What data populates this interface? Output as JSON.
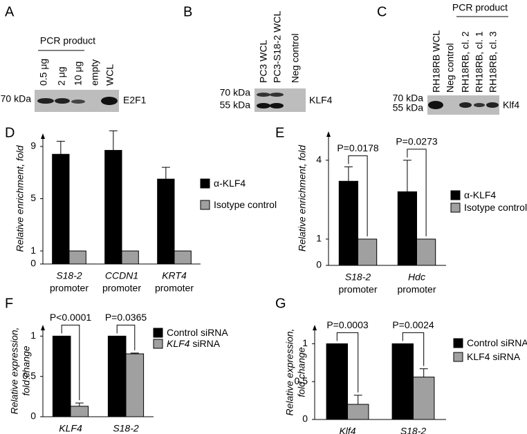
{
  "blots": [
    {
      "panel": "A",
      "header": "PCR product",
      "lanes": [
        "0.5 μg",
        "2 μg",
        "10 μg",
        "empty",
        "WCL"
      ],
      "markers": [
        "70 kDa"
      ],
      "protein": "E2F1"
    },
    {
      "panel": "B",
      "lanes": [
        "PC3 WCL",
        "PC3-S18-2 WCL",
        "Neg control"
      ],
      "markers": [
        "70 kDa",
        "55 kDa"
      ],
      "protein": "KLF4"
    },
    {
      "panel": "C",
      "header": "PCR product",
      "lanes": [
        "RH18RB WCL",
        "Neg control",
        "RH18RB, cl. 2",
        "RH18RB, cl. 1",
        "RH18RB, cl. 3"
      ],
      "markers": [
        "70 kDa",
        "55 kDa"
      ],
      "protein": "Klf4"
    }
  ],
  "chart_data": [
    {
      "type": "bar",
      "panel": "D",
      "ylabel": [
        "Relative enrichment, fold"
      ],
      "categories": [
        "S18-2",
        "CCDN1",
        "KRT4"
      ],
      "category_sublabel": "promoter",
      "series": [
        {
          "name": "α-KLF4",
          "color": "#000000",
          "values": [
            8.4,
            8.7,
            6.5
          ],
          "errors": [
            1.0,
            1.5,
            0.9
          ]
        },
        {
          "name": "Isotype control",
          "color": "#a0a0a0",
          "values": [
            1,
            1,
            1
          ]
        }
      ],
      "ylim": [
        0,
        10
      ],
      "yticks": [
        0,
        1,
        5,
        9
      ]
    },
    {
      "type": "bar",
      "panel": "E",
      "ylabel": [
        "Relative enrichment, fold"
      ],
      "categories": [
        "S18-2",
        "Hdc"
      ],
      "category_sublabel": "promoter",
      "series": [
        {
          "name": "α-KLF4",
          "color": "#000000",
          "values": [
            3.2,
            2.8
          ],
          "errors": [
            0.55,
            1.2
          ]
        },
        {
          "name": "Isotype control",
          "color": "#a0a0a0",
          "values": [
            1,
            1
          ]
        }
      ],
      "pvalues": [
        "P=0.0178",
        "P=0.0273"
      ],
      "ylim": [
        0,
        5.1
      ],
      "yticks": [
        0,
        1,
        4
      ]
    },
    {
      "type": "bar",
      "panel": "F",
      "ylabel": [
        "Relative expression,",
        "fold change"
      ],
      "categories": [
        "KLF4",
        "S18-2"
      ],
      "series": [
        {
          "name": "Control siRNA",
          "color": "#000000",
          "values": [
            1,
            1
          ]
        },
        {
          "name": "KLF4 siRNA",
          "color": "#a0a0a0",
          "values": [
            0.13,
            0.78
          ],
          "errors": [
            0.04,
            0.01
          ]
        }
      ],
      "pvalues": [
        "P<0.0001",
        "P=0.0365"
      ],
      "ylim": [
        0,
        1.14
      ],
      "yticks": [
        0,
        0.5,
        1
      ]
    },
    {
      "type": "bar",
      "panel": "G",
      "ylabel": [
        "Relative expression,",
        "fold change"
      ],
      "categories": [
        "Klf4",
        "S18-2"
      ],
      "series": [
        {
          "name": "Control siRNA",
          "color": "#000000",
          "values": [
            1,
            1
          ]
        },
        {
          "name": "KLF4 siRNA",
          "color": "#a0a0a0",
          "values": [
            0.2,
            0.56
          ],
          "errors": [
            0.12,
            0.11
          ]
        }
      ],
      "pvalues": [
        "P=0.0003",
        "P=0.0024"
      ],
      "ylim": [
        0,
        1.25
      ],
      "yticks": [
        0,
        0.5,
        1
      ]
    }
  ]
}
